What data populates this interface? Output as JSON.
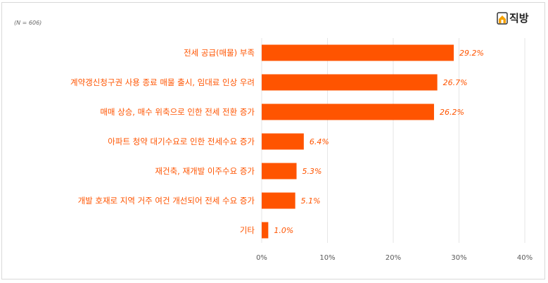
{
  "note": "(N = 606)",
  "logo": {
    "text": "직방",
    "icon": "house-icon"
  },
  "chart_data": {
    "type": "bar",
    "orientation": "horizontal",
    "categories": [
      "전세 공급(매물) 부족",
      "계약갱신청구권 사용 종료 매물 출시, 임대료 인상 우려",
      "매매 상승, 매수 위축으로 인한 전세 전환 증가",
      "아파트 청약 대기수요로 인한 전세수요 증가",
      "재건축, 재개발 이주수요 증가",
      "개발 호재로 지역 거주 여건 개선되어 전세 수요 증가",
      "기타"
    ],
    "values": [
      29.2,
      26.7,
      26.2,
      6.4,
      5.3,
      5.1,
      1.0
    ],
    "data_labels": [
      "29.2%",
      "26.7%",
      "26.2%",
      "6.4%",
      "5.3%",
      "5.1%",
      "1.0%"
    ],
    "xlim": [
      0,
      40
    ],
    "xticks": [
      0,
      10,
      20,
      30,
      40
    ],
    "xtick_labels": [
      "0%",
      "10%",
      "20%",
      "30%",
      "40%"
    ],
    "grid": true,
    "bar_color": "#ff5400",
    "label_color": "#ff5400"
  }
}
